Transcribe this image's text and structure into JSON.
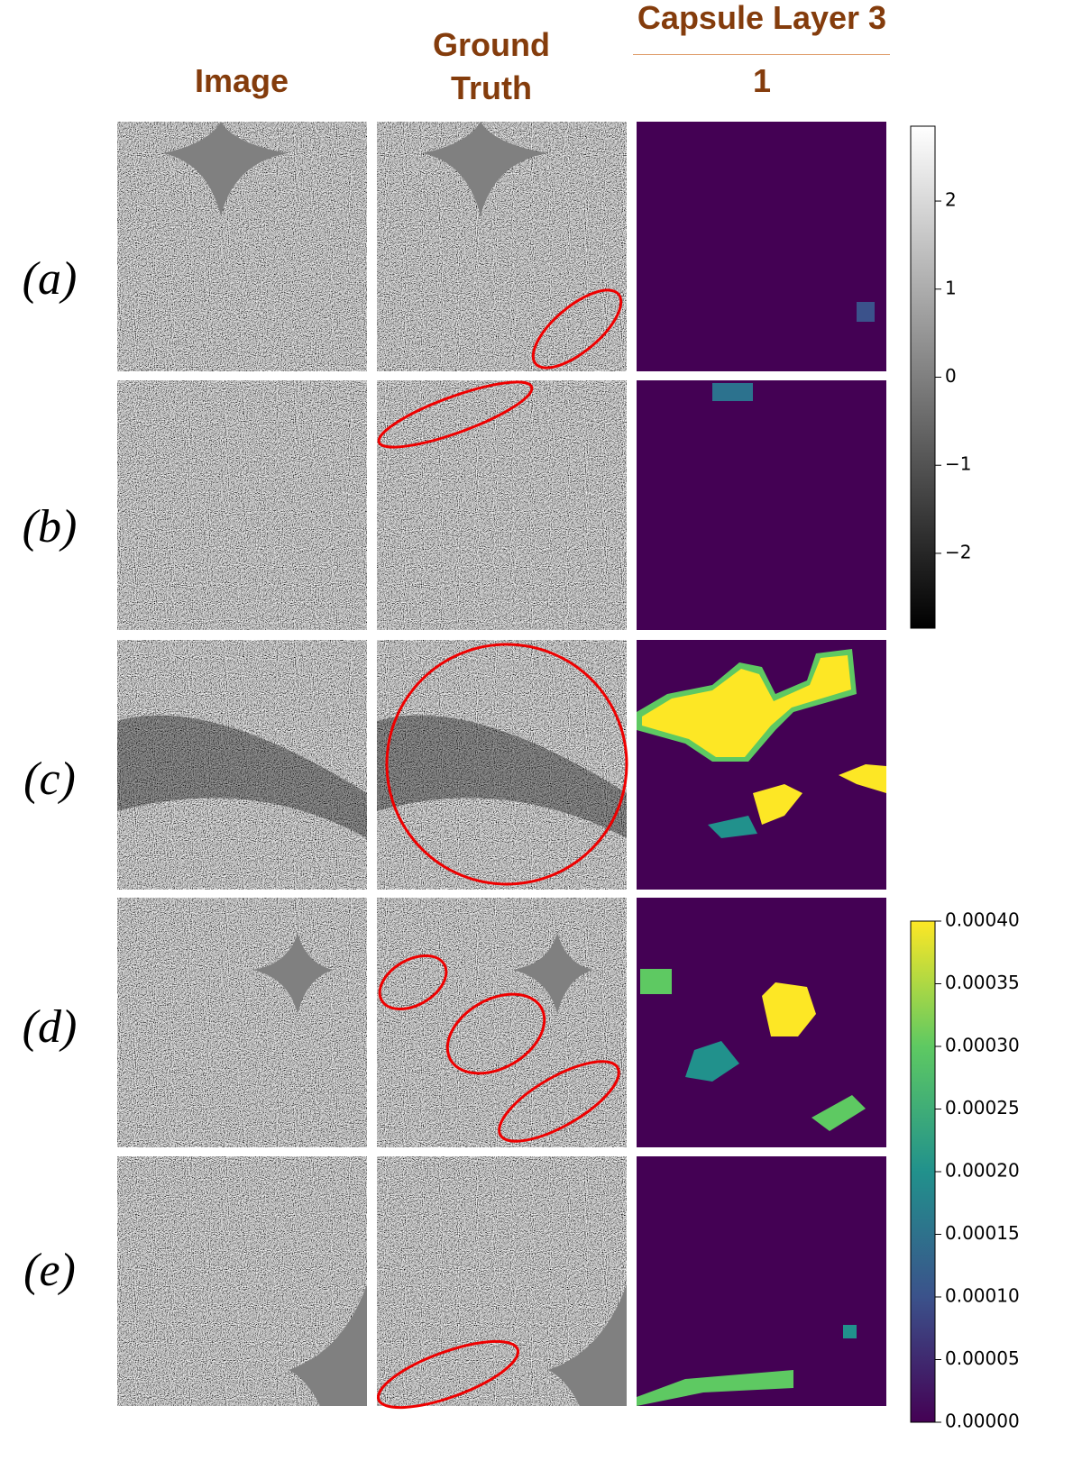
{
  "headers": {
    "image": "Image",
    "ground_truth": "Ground Truth",
    "capsule_layer": "Capsule Layer 3",
    "capsule_index": "1"
  },
  "rows": [
    "(a)",
    "(b)",
    "(c)",
    "(d)",
    "(e)"
  ],
  "colorbars": [
    {
      "ylim": [
        -2.85,
        2.85
      ],
      "yticks": [
        {
          "value": -2,
          "label": "−2"
        },
        {
          "value": -1,
          "label": "−1"
        },
        0,
        1,
        2
      ]
    },
    {
      "ylim": [
        0,
        0.0004
      ],
      "yticks": [
        {
          "value": 0,
          "label": "0.00000"
        },
        {
          "value": 5e-05,
          "label": "0.00005"
        },
        {
          "value": 0.0001,
          "label": "0.00010"
        },
        {
          "value": 0.00015,
          "label": "0.00015"
        },
        {
          "value": 0.0002,
          "label": "0.00020"
        },
        {
          "value": 0.00025,
          "label": "0.00025"
        },
        {
          "value": 0.0003,
          "label": "0.00030"
        },
        {
          "value": 0.00035,
          "label": "0.00035"
        },
        {
          "value": 0.0004,
          "label": "0.00040"
        }
      ]
    }
  ]
}
